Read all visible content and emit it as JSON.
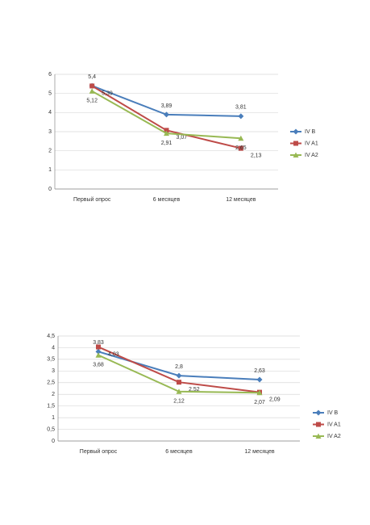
{
  "chart_data": [
    {
      "type": "line",
      "categories": [
        "Первый опрос",
        "6 месяцев",
        "12 месяцев"
      ],
      "ylim": [
        0,
        6
      ],
      "yticks": [
        0,
        1,
        2,
        3,
        4,
        5,
        6
      ],
      "grid": true,
      "series": [
        {
          "name": "IV B",
          "color": "#4a7ebb",
          "marker": "diamond",
          "values": [
            5.4,
            3.89,
            3.81
          ],
          "value_labels": [
            "5,4",
            "3,89",
            "3,81"
          ]
        },
        {
          "name": "IV A1",
          "color": "#be4b48",
          "marker": "square",
          "values": [
            5.39,
            3.07,
            2.13
          ],
          "value_labels": [
            "5,39",
            "3,07",
            "2,13"
          ]
        },
        {
          "name": "IV A2",
          "color": "#98b954",
          "marker": "triangle",
          "values": [
            5.12,
            2.91,
            2.65
          ],
          "value_labels": [
            "5,12",
            "2,91",
            "2,65"
          ]
        }
      ]
    },
    {
      "type": "line",
      "categories": [
        "Первый опрос",
        "6 месяцев",
        "12 месяцев"
      ],
      "ylim": [
        0,
        4.5
      ],
      "yticks": [
        0,
        {
          "value": 0.5,
          "label": "0,5"
        },
        1,
        {
          "value": 1.5,
          "label": "1,5"
        },
        2,
        {
          "value": 2.5,
          "label": "2,5"
        },
        3,
        {
          "value": 3.5,
          "label": "3,5"
        },
        4,
        {
          "value": 4.5,
          "label": "4,5"
        }
      ],
      "grid": true,
      "series": [
        {
          "name": "IV B",
          "color": "#4a7ebb",
          "marker": "diamond",
          "values": [
            3.83,
            2.8,
            2.63
          ],
          "value_labels": [
            "3,83",
            "2,8",
            "2,63"
          ]
        },
        {
          "name": "IV A1",
          "color": "#be4b48",
          "marker": "square",
          "values": [
            4.03,
            2.52,
            2.09
          ],
          "value_labels": [
            "4,03",
            "2,52",
            "2,09"
          ]
        },
        {
          "name": "IV A2",
          "color": "#98b954",
          "marker": "triangle",
          "values": [
            3.68,
            2.12,
            2.07
          ],
          "value_labels": [
            "3,68",
            "2,12",
            "2,07"
          ]
        }
      ]
    }
  ]
}
